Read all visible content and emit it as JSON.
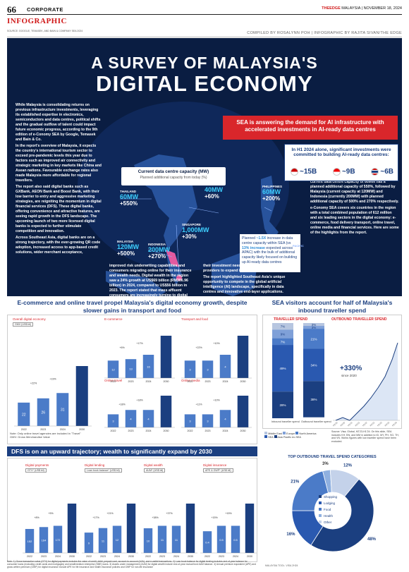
{
  "header": {
    "page_number": "66",
    "section": "CORPORATE",
    "tag": "INFOGRAPHIC",
    "edge_brand": "THEEDGE",
    "edge_rest": "MALAYSIA | NOVEMBER 18, 2024",
    "source": "SOURCE: GOOGLE, TEMASEK, AND BAIN & COMPANY SEA 2024",
    "credit": "COMPILED BY ROSALYNN POH | INFOGRAPHIC BY RAJITA SIVAN/THE EDGE"
  },
  "hero": {
    "title_line1": "A SURVEY OF MALAYSIA'S",
    "title_line2": "DIGITAL ECONOMY",
    "col1": [
      "While Malaysia is consolidating returns on previous infrastructure investments, leveraging its established expertise in electronics, semiconductors and data centres, political shifts and the gradual outflow of talent could impact future economic progress, according to the 9th edition of e-Conomy SEA by Google, Temasek and Bain & Co.",
      "In the report's overview of Malaysia, it expects the country's international tourism sector to exceed pre-pandemic levels this year due to factors such as improved air connectivity and strategic marketing in key markets like China and Asean nations. Favourable exchange rates also made Malaysia more affordable for regional travellers.",
      "The report also said digital banks such as GXBank, AEON Bank and Boost Bank, with their low barrier to entry and aggressive marketing strategies, are reigniting the momentum in digital financial services (DFS). These digital banks, offering convenience and attractive features, are seeing rapid growth in the DFS landscape. The upcoming launch of two more licensed digital banks is expected to further stimulate competition and innovation.",
      "Across Southeast Asia, digital banks are on a strong trajectory, with the ever-growing QR code adoption, increased access to app-based credit solutions, wider merchant acceptance,"
    ],
    "col2": "improved risk underwriting capabilities and consumers migrating online for their insurance and wealth needs. Digital wealth in the region saw a 24% growth at US$69 billion (RM306.96 billion) in 2024, compared to US$56 billion in 2023. The report stated that mass affluent consumers are increasingly turning to digital channels for",
    "col3": [
      "their investment needs, prompting more e-wallet providers to expand into wealth management.",
      "The report highlighted Southeast Asia's unique opportunity to compete in the global artificial intelligence (AI) landscape, specifically in data centres and innovative end-layer applications."
    ],
    "col4": [
      "In 1H2024, Malaysia led the way with significant investments of about US$15 billion committed to building AI-ready data centres, followed by Singapore (US$9 billion) and Thailand (US$6 billion). In terms of planned additional capacity to date, Thailand, Malaysia, Singapore and the Philippines came out on top. Thailand, with its current data centre capacity of 60MW has a planned additional capacity of 550%, followed by Malaysia (current capacity at 120MW) and Indonesia (currently 200MW) with planned additional capacity of 500% and 270% respectively.",
      "e-Conomy SEA covers six countries in the region with a total combined population of 612 million and six leading sectors in the digital economy: e-commerce, food delivery transport, online travel, online media and financial services. Here are some of the highlights from the report."
    ],
    "sea_banner": "SEA is answering the demand for AI infrastructure with accelerated investments in AI-ready data centres",
    "h1_title": "In H1 2024 alone, significant investments were committed to building AI-ready data centres:",
    "h1_values": [
      "~15B",
      "~9B",
      "~6B"
    ],
    "cdc_title": "Current data centre capacity (MW)",
    "cdc_sub": "Planned additional capacity from today (%)",
    "countries": [
      {
        "name": "THAILAND",
        "mw": "60MW",
        "pct": "+550%"
      },
      {
        "name": "VIETNAM",
        "mw": "40MW",
        "pct": "+60%"
      },
      {
        "name": "PHILIPPINES",
        "mw": "60MW",
        "pct": "+200%"
      },
      {
        "name": "SINGAPORE",
        "mw": "1,000MW",
        "pct": "+30%"
      },
      {
        "name": "MALAYSIA",
        "mw": "120MW",
        "pct": "+500%"
      },
      {
        "name": "INDONESIA",
        "mw": "200MW",
        "pct": "+270%"
      }
    ],
    "planned_text_a": "Planned ",
    "planned_em1": "~1.5X",
    "planned_text_b": " increase in data centre capacity within SEA (vs ",
    "planned_em2": "13% increase",
    "planned_text_c": " expected across APAC) with the bulk of additional capacity likely focused on building up AI-ready data centres",
    "pacific": "PACIFIC"
  },
  "ecommerce": {
    "title": "E-commerce and online travel propel Malaysia's digital economy growth, despite slower gains in transport and food",
    "overall_label": "Overall digital economy",
    "overall_sub": "GMV (US$ bil)",
    "note1": "Note: Only online travel agencies are included in \"Travel\"",
    "note2": "GMV: Gross Merchandise Value",
    "ecom_label": "E-commerce",
    "transport_label": "Transport and food",
    "travel_label": "Online travel",
    "media_label": "Online media"
  },
  "visitors": {
    "title": "SEA visitors account for half of Malaysia's inbound traveller spend",
    "traveller_spend": "TRAVELLER SPEND",
    "outbound_spend": "OUTBOUND TRAVELLER SPEND",
    "growth": "+330%",
    "growth_sub": "since 2020",
    "legend": [
      "Middle East",
      "Europe",
      "North America",
      "SEA",
      "Asia Pacific ex-SEA"
    ],
    "source_note": "Source: Visa; Global, H2'23-H1'24. On this slide, SEA includes KH, BN, and MM in addition to ID, MY, PH, SG, TH, and VN. Works figures with low traveller spend have been excluded.",
    "inbound_label": "Inbound traveller spend",
    "outbound_label": "Outbound traveller spend"
  },
  "dfs": {
    "title": "DFS is on an upward trajectory; wealth to significantly expand by 2030",
    "labels": [
      "Digital payments",
      "Digital lending",
      "Digital wealth",
      "Digital insurance"
    ],
    "subs": [
      "GTV* (US$ bil)",
      "Loan book balance* (US$ bil)",
      "AUM* (US$ bil)",
      "APE & GWP* (US$ bil)"
    ],
    "note": "Note: 1) Gross transaction value (GTV) for digital payments includes the value of credit, debit, prepaid card, account-to-account (A2A), and e-wallet transactions. 2) Loan book balance for digital lending includes end-of-year balance for consumer loans (excluding credit cards and mortgages) and small/medium enterprise (SME) loans. 3) Assets under management (AUM) for digital wealth include end-of-year mutual fund AUM balance. 4) Annual premium equivalent (APE) and gross written premium (GWP) for digital insurance include APE for life insurance and health insurance policies and GWP for non-life insurance"
  },
  "categories": {
    "title": "TOP OUTBOUND TRAVEL SPEND CATEGORIES",
    "footer": "MALAYSIA TOOL: VISA 2H24"
  },
  "chart_data": [
    {
      "type": "bar",
      "title": "Overall digital economy",
      "ylabel": "GMV (US$ bil)",
      "categories": [
        "2022",
        "2023",
        "2024",
        "2030"
      ],
      "values": [
        22,
        26,
        31,
        0
      ],
      "annotations": [
        "+22%",
        "+19%"
      ]
    },
    {
      "type": "bar",
      "title": "E-commerce",
      "categories": [
        "2022",
        "2023",
        "2024",
        "2030"
      ],
      "values": [
        12,
        13,
        16,
        0
      ],
      "annotations": [
        "+6%",
        "+17%"
      ]
    },
    {
      "type": "bar",
      "title": "Transport and food",
      "categories": [
        "2022",
        "2023",
        "2024",
        "2030"
      ],
      "values": [
        3,
        3,
        4,
        0
      ],
      "annotations": [
        "+22%",
        "+10%"
      ]
    },
    {
      "type": "bar",
      "title": "Online travel",
      "categories": [
        "2022",
        "2023",
        "2024",
        "2030"
      ],
      "values": [
        3,
        4,
        4,
        0
      ],
      "annotations": [
        "+18%",
        "+18%"
      ]
    },
    {
      "type": "bar",
      "title": "Online media",
      "categories": [
        "2022",
        "2023",
        "2024",
        "2030"
      ],
      "values": [
        3,
        3,
        4,
        0
      ],
      "annotations": [
        "+11%",
        "+10%"
      ]
    },
    {
      "type": "bar",
      "title": "Traveller spend",
      "categories": [
        "Inbound traveller spend",
        "Outbound traveller spend"
      ],
      "series": [
        {
          "name": "Middle East",
          "values": [
            7,
            3
          ]
        },
        {
          "name": "Europe",
          "values": [
            9,
            3
          ]
        },
        {
          "name": "North America",
          "values": [
            7,
            21
          ]
        },
        {
          "name": "SEA",
          "values": [
            49,
            34
          ]
        },
        {
          "name": "Asia Pacific ex-SEA",
          "values": [
            28,
            38
          ]
        }
      ],
      "annotations": [
        "11%",
        "11%",
        "21%",
        "11%",
        "12%"
      ]
    },
    {
      "type": "bar",
      "title": "Digital payments",
      "ylabel": "GTV* (US$ bil)",
      "categories": [
        "2022",
        "2023",
        "2024",
        "2030"
      ],
      "values": [
        152,
        164,
        172,
        0
      ],
      "annotations": [
        "+8%",
        "+5%"
      ]
    },
    {
      "type": "bar",
      "title": "Digital lending",
      "categories": [
        "2022",
        "2023",
        "2024",
        "2030"
      ],
      "values": [
        9,
        11,
        12,
        0
      ],
      "annotations": [
        "+17%",
        "+21%"
      ]
    },
    {
      "type": "bar",
      "title": "Digital wealth",
      "categories": [
        "2022",
        "2023",
        "2024",
        "2030"
      ],
      "values": [
        10,
        11,
        11,
        0
      ],
      "annotations": [
        "+38%",
        "+37%"
      ]
    },
    {
      "type": "bar",
      "title": "Digital insurance",
      "categories": [
        "2022",
        "2023",
        "2024",
        "2030"
      ],
      "values": [
        0.4,
        0.5,
        0.5,
        0
      ],
      "annotations": [
        "+15%",
        "+15%"
      ]
    },
    {
      "type": "pie",
      "title": "TOP OUTBOUND TRAVEL SPEND CATEGORIES",
      "categories": [
        "Shopping",
        "Lodging",
        "Food",
        "Health",
        "Other"
      ],
      "values": [
        48,
        16,
        21,
        3,
        12
      ]
    }
  ],
  "colors": {
    "navy": "#0a1d42",
    "blue": "#1b3f80",
    "red": "#d9262b",
    "cyan": "#3ed0ff",
    "bar_light": "#4b7bc8",
    "bar_dark": "#1b3f80"
  }
}
